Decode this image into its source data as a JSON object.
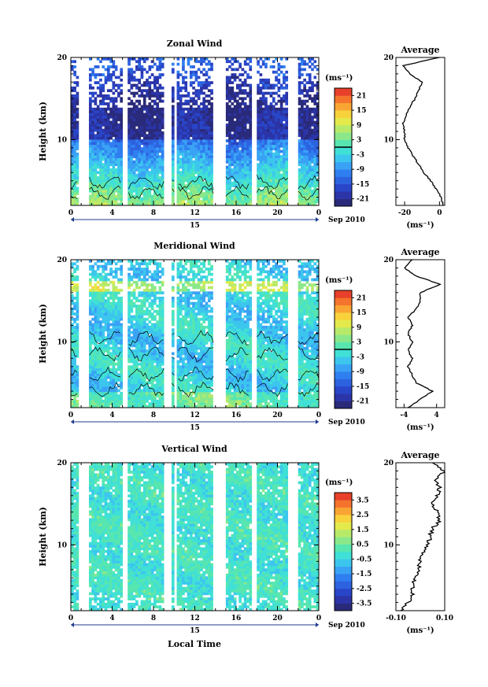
{
  "figure": {
    "xlabel": "Local Time",
    "date_label": "Sep 2010",
    "day_label": "15",
    "colorbar_unit": "(ms⁻¹)",
    "profile_unit": "(ms⁻¹)"
  },
  "chart_data": [
    {
      "type": "heatmap",
      "title": "Zonal Wind",
      "xlabel": "",
      "ylabel": "Height (km)",
      "xlim": [
        0,
        24
      ],
      "ylim": [
        2,
        20
      ],
      "x_ticks": [
        "0",
        "4",
        "8",
        "12",
        "16",
        "20",
        "0"
      ],
      "y_ticks": [
        "10",
        "20"
      ],
      "colorbar": {
        "unit": "(ms⁻¹)",
        "range": [
          -24,
          24
        ],
        "ticks": [
          "21",
          "15",
          "9",
          "3",
          "-3",
          "-9",
          "-15",
          "-21"
        ],
        "zero_line": true
      },
      "profile": {
        "title": "Average",
        "xlim": [
          -25,
          3
        ],
        "x_ticks": [
          "-20",
          "0"
        ],
        "y_ticks": [
          "10",
          "20"
        ],
        "height": [
          2,
          3,
          4,
          5,
          6,
          7,
          8,
          9,
          10,
          11,
          12,
          13,
          14,
          15,
          16,
          17,
          18,
          19,
          20
        ],
        "values": [
          2,
          1,
          -2,
          -5,
          -9,
          -12,
          -15,
          -18,
          -20,
          -20,
          -21,
          -19,
          -17,
          -14,
          -12,
          -10,
          -17,
          -21,
          0
        ]
      }
    },
    {
      "type": "heatmap",
      "title": "Meridional Wind",
      "xlabel": "",
      "ylabel": "Height (km)",
      "xlim": [
        0,
        24
      ],
      "ylim": [
        2,
        20
      ],
      "x_ticks": [
        "0",
        "4",
        "8",
        "12",
        "16",
        "20",
        "0"
      ],
      "y_ticks": [
        "10",
        "20"
      ],
      "colorbar": {
        "unit": "(ms⁻¹)",
        "range": [
          -24,
          24
        ],
        "ticks": [
          "21",
          "15",
          "9",
          "3",
          "-3",
          "-9",
          "-15",
          "-21"
        ],
        "zero_line": true
      },
      "profile": {
        "title": "Average",
        "xlim": [
          -6,
          6
        ],
        "x_ticks": [
          "-4",
          "4"
        ],
        "y_ticks": [
          "10",
          "20"
        ],
        "height": [
          2,
          3,
          4,
          5,
          6,
          7,
          8,
          9,
          10,
          11,
          12,
          13,
          14,
          15,
          16,
          17,
          18,
          19,
          20
        ],
        "values": [
          -3,
          0,
          3,
          -1,
          -2,
          -3,
          -2,
          -3,
          -2,
          -3,
          -2,
          -3,
          -1,
          0,
          0,
          5,
          -1,
          -4,
          -2
        ]
      }
    },
    {
      "type": "heatmap",
      "title": "Vertical Wind",
      "xlabel": "",
      "ylabel": "Height (km)",
      "xlim": [
        0,
        24
      ],
      "ylim": [
        2,
        20
      ],
      "x_ticks": [
        "0",
        "4",
        "8",
        "12",
        "16",
        "20",
        "0"
      ],
      "y_ticks": [
        "10",
        "20"
      ],
      "colorbar": {
        "unit": "(ms⁻¹)",
        "range": [
          -4,
          4
        ],
        "ticks": [
          "3.5",
          "2.5",
          "1.5",
          "0.5",
          "-0.5",
          "-1.5",
          "-2.5",
          "-3.5"
        ],
        "zero_line": false
      },
      "profile": {
        "title": "Average",
        "xlim": [
          -0.1,
          0.1
        ],
        "x_ticks": [
          "-0.10",
          "0.10"
        ],
        "y_ticks": [
          "10",
          "20"
        ],
        "height": [
          2,
          3,
          4,
          5,
          6,
          7,
          8,
          9,
          10,
          11,
          12,
          13,
          14,
          15,
          16,
          17,
          18,
          19,
          20
        ],
        "values": [
          -0.08,
          -0.05,
          -0.03,
          -0.03,
          -0.02,
          -0.01,
          0.0,
          0.01,
          0.03,
          0.04,
          0.05,
          0.08,
          0.07,
          0.05,
          0.07,
          0.08,
          0.06,
          0.1,
          0.05
        ]
      }
    }
  ]
}
